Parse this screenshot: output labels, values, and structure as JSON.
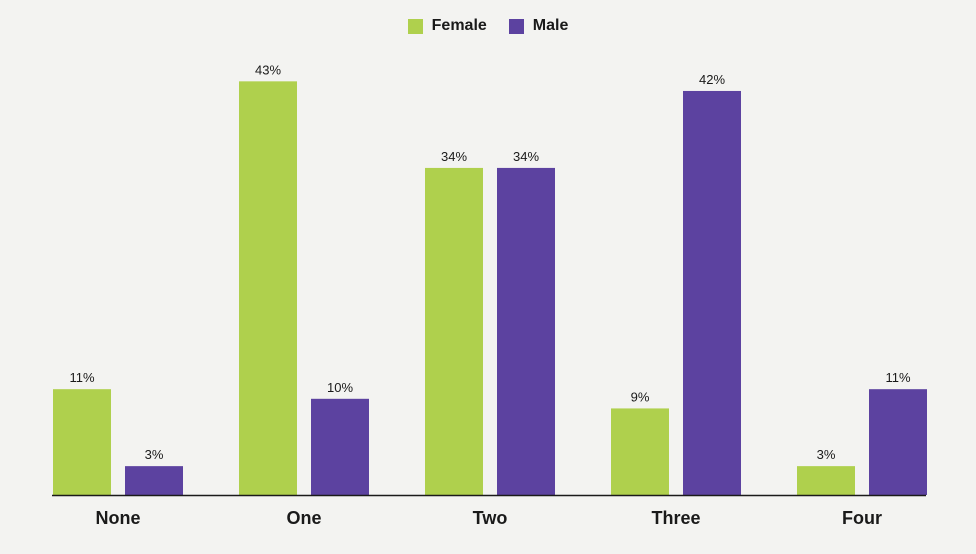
{
  "chart_data": {
    "type": "bar",
    "categories": [
      "None",
      "One",
      "Two",
      "Three",
      "Four"
    ],
    "series": [
      {
        "name": "Female",
        "color": "#afd04d",
        "values": [
          11,
          43,
          34,
          9,
          3
        ]
      },
      {
        "name": "Male",
        "color": "#5c42a0",
        "values": [
          3,
          10,
          34,
          42,
          11
        ]
      }
    ],
    "value_suffix": "%",
    "ylim": [
      0,
      45
    ],
    "legend_position": "top-center",
    "grid": false
  }
}
